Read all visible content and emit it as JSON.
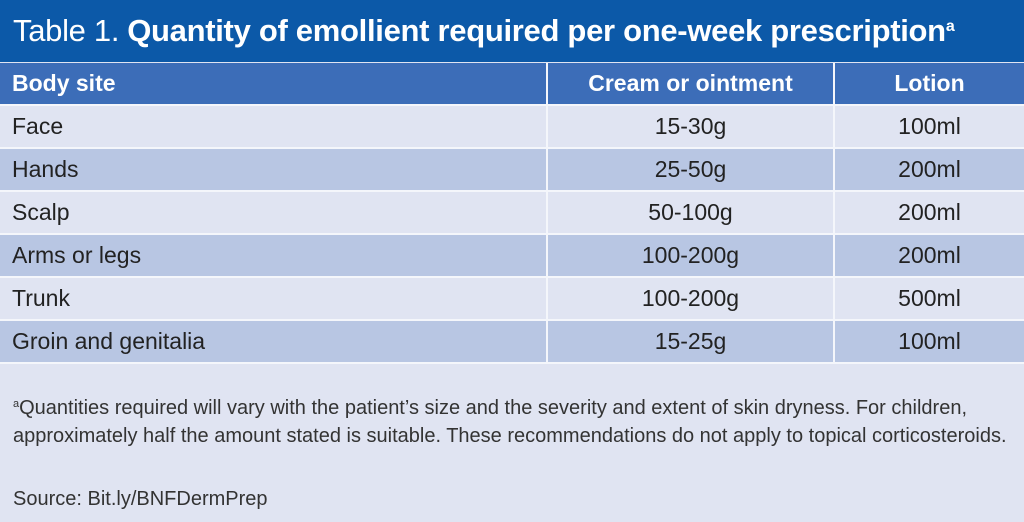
{
  "title": {
    "lead": "Table 1.",
    "main": "Quantity of emollient required per one-week prescription",
    "superscript": "a"
  },
  "colors": {
    "title_bg": "#0c59a8",
    "header_bg": "#3c6db8",
    "row_light": "#e0e4f2",
    "row_dark": "#b8c6e3"
  },
  "table": {
    "headers": [
      "Body site",
      "Cream or ointment",
      "Lotion"
    ],
    "rows": [
      [
        "Face",
        "15-30g",
        "100ml"
      ],
      [
        "Hands",
        "25-50g",
        "200ml"
      ],
      [
        "Scalp",
        "50-100g",
        "200ml"
      ],
      [
        "Arms or legs",
        "100-200g",
        "200ml"
      ],
      [
        "Trunk",
        "100-200g",
        "500ml"
      ],
      [
        "Groin and genitalia",
        "15-25g",
        "100ml"
      ]
    ]
  },
  "footnote": {
    "marker": "a",
    "text": "Quantities required will vary with the patient’s size and the severity and extent of skin dryness. For children, approximately half the amount stated is suitable. These recommendations do not apply to topical corticosteroids."
  },
  "source": "Source: Bit.ly/BNFDermPrep"
}
